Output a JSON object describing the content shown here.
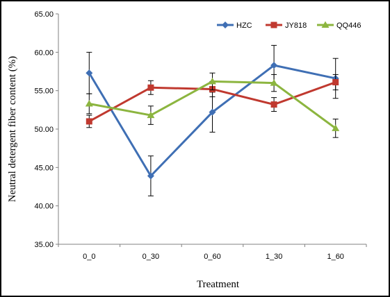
{
  "chart_data": {
    "type": "line",
    "title": "",
    "xlabel": "Treatment",
    "ylabel": "Neutral  detergent fiber content (%)",
    "categories": [
      "0_0",
      "0_30",
      "0_60",
      "1_30",
      "1_60"
    ],
    "ylim": [
      35,
      65
    ],
    "yticks": [
      "35.00",
      "40.00",
      "45.00",
      "50.00",
      "55.00",
      "60.00",
      "65.00"
    ],
    "grid": false,
    "legend_position": "top-right",
    "series": [
      {
        "name": "HZC",
        "color": "#3f6fb4",
        "marker": "diamond",
        "values": [
          57.3,
          43.9,
          52.2,
          58.3,
          56.6
        ],
        "errors": [
          2.7,
          2.6,
          2.6,
          2.6,
          2.6
        ]
      },
      {
        "name": "JY818",
        "color": "#c0392f",
        "marker": "square",
        "values": [
          51.0,
          55.4,
          55.2,
          53.2,
          56.1
        ],
        "errors": [
          0.8,
          0.9,
          1.0,
          0.9,
          1.0
        ]
      },
      {
        "name": "QQ446",
        "color": "#8cb53f",
        "marker": "triangle",
        "values": [
          53.3,
          51.8,
          56.2,
          56.0,
          50.1
        ],
        "errors": [
          1.3,
          1.2,
          1.1,
          1.1,
          1.2
        ]
      }
    ]
  }
}
